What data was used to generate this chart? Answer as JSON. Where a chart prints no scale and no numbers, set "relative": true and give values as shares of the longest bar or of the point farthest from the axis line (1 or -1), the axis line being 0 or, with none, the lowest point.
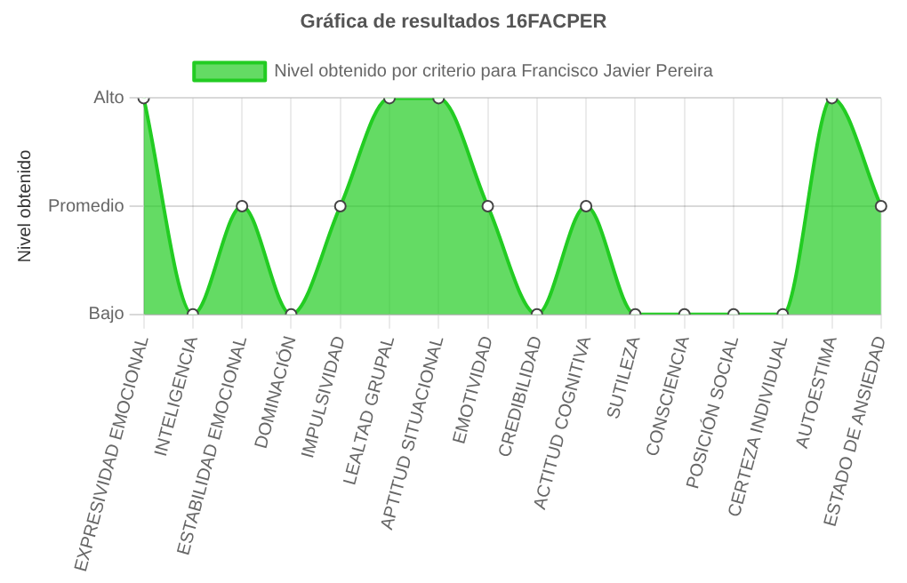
{
  "chart_data": {
    "type": "area",
    "title": "Gráfica de resultados 16FACPER",
    "ylabel": "Nivel obtenido",
    "categories": [
      "EXPRESIVIDAD EMOCIONAL",
      "INTELIGENCIA",
      "ESTABILIDAD EMOCIONAL",
      "DOMINACIÓN",
      "IMPULSIVIDAD",
      "LEALTAD GRUPAL",
      "APTITUD SITUACIONAL",
      "EMOTIVIDAD",
      "CREDIBILIDAD",
      "ACTITUD COGNITIVA",
      "SUTILEZA",
      "CONSCIENCIA",
      "POSICIÓN SOCIAL",
      "CERTEZA INDIVIDUAL",
      "AUTOESTIMA",
      "ESTADO DE ANSIEDAD"
    ],
    "y_categories": [
      "Alto",
      "Promedio",
      "Bajo"
    ],
    "relative": true,
    "series": [
      {
        "name": "Nivel obtenido por criterio para Francisco Javier Pereira",
        "color": "#22cc22",
        "values": [
          1,
          0,
          0.5,
          0,
          0.5,
          1,
          1,
          0.5,
          0,
          0.5,
          0,
          0,
          0,
          0,
          1,
          0.5
        ]
      }
    ],
    "grid": true,
    "legend": "top",
    "marker": "circle",
    "line_style": "solid"
  }
}
